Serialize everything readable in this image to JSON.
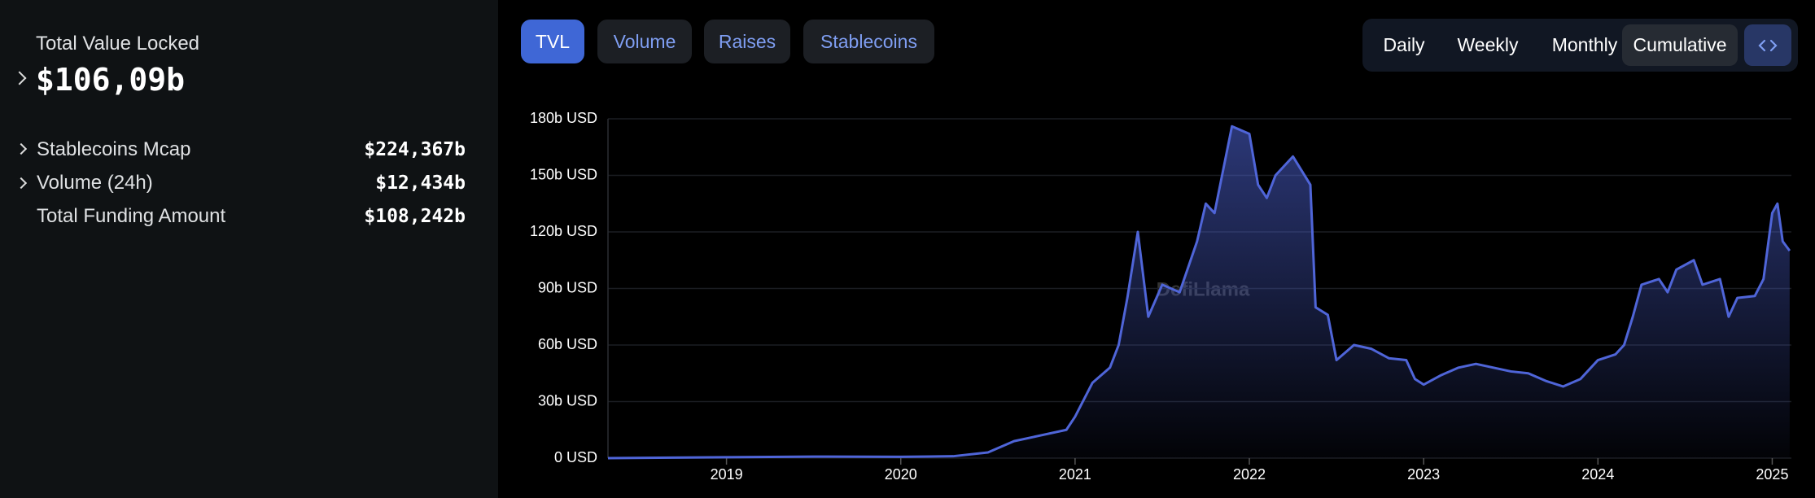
{
  "sidebar": {
    "headline": {
      "label": "Total Value Locked",
      "value": "$106,09b"
    },
    "rows": [
      {
        "label": "Stablecoins Mcap",
        "value": "$224,367b"
      },
      {
        "label": "Volume (24h)",
        "value": "$12,434b"
      },
      {
        "label": "Total Funding Amount",
        "value": "$108,242b"
      }
    ]
  },
  "tabs": [
    "TVL",
    "Volume",
    "Raises",
    "Stablecoins"
  ],
  "periods": [
    "Daily",
    "Weekly",
    "Monthly",
    "Cumulative"
  ],
  "watermark": "DefiLlama",
  "chart_data": {
    "type": "line",
    "color": "#4f65d8",
    "x": [
      2018.32,
      2019.0,
      2019.5,
      2020.0,
      2020.3,
      2020.5,
      2020.65,
      2020.8,
      2020.95,
      2021.0,
      2021.1,
      2021.2,
      2021.25,
      2021.3,
      2021.36,
      2021.42,
      2021.5,
      2021.6,
      2021.7,
      2021.75,
      2021.8,
      2021.9,
      2022.0,
      2022.05,
      2022.1,
      2022.15,
      2022.25,
      2022.35,
      2022.38,
      2022.45,
      2022.5,
      2022.6,
      2022.7,
      2022.8,
      2022.9,
      2022.95,
      2023.0,
      2023.1,
      2023.2,
      2023.3,
      2023.4,
      2023.5,
      2023.6,
      2023.7,
      2023.8,
      2023.9,
      2024.0,
      2024.1,
      2024.15,
      2024.2,
      2024.25,
      2024.35,
      2024.4,
      2024.45,
      2024.55,
      2024.6,
      2024.7,
      2024.75,
      2024.8,
      2024.9,
      2024.95,
      2025.0,
      2025.03,
      2025.06,
      2025.1
    ],
    "values": [
      0,
      0.5,
      0.8,
      0.7,
      1,
      3,
      9,
      12,
      15,
      22,
      40,
      48,
      60,
      85,
      120,
      75,
      92,
      88,
      115,
      135,
      130,
      176,
      172,
      145,
      138,
      150,
      160,
      145,
      80,
      76,
      52,
      60,
      58,
      53,
      52,
      42,
      39,
      44,
      48,
      50,
      48,
      46,
      45,
      41,
      38,
      42,
      52,
      55,
      60,
      75,
      92,
      95,
      88,
      100,
      105,
      92,
      95,
      75,
      85,
      86,
      95,
      130,
      135,
      115,
      110
    ],
    "xlim": [
      2018.32,
      2025.11
    ],
    "xticks": [
      2019,
      2020,
      2021,
      2022,
      2023,
      2024,
      2025
    ],
    "ylim": [
      0,
      180
    ],
    "yticks": [
      {
        "value": 0,
        "label": "0 USD"
      },
      {
        "value": 30,
        "label": "30b USD"
      },
      {
        "value": 60,
        "label": "60b USD"
      },
      {
        "value": 90,
        "label": "90b USD"
      },
      {
        "value": 120,
        "label": "120b USD"
      },
      {
        "value": 150,
        "label": "150b USD"
      },
      {
        "value": 180,
        "label": "180b USD"
      }
    ],
    "grid": true
  }
}
